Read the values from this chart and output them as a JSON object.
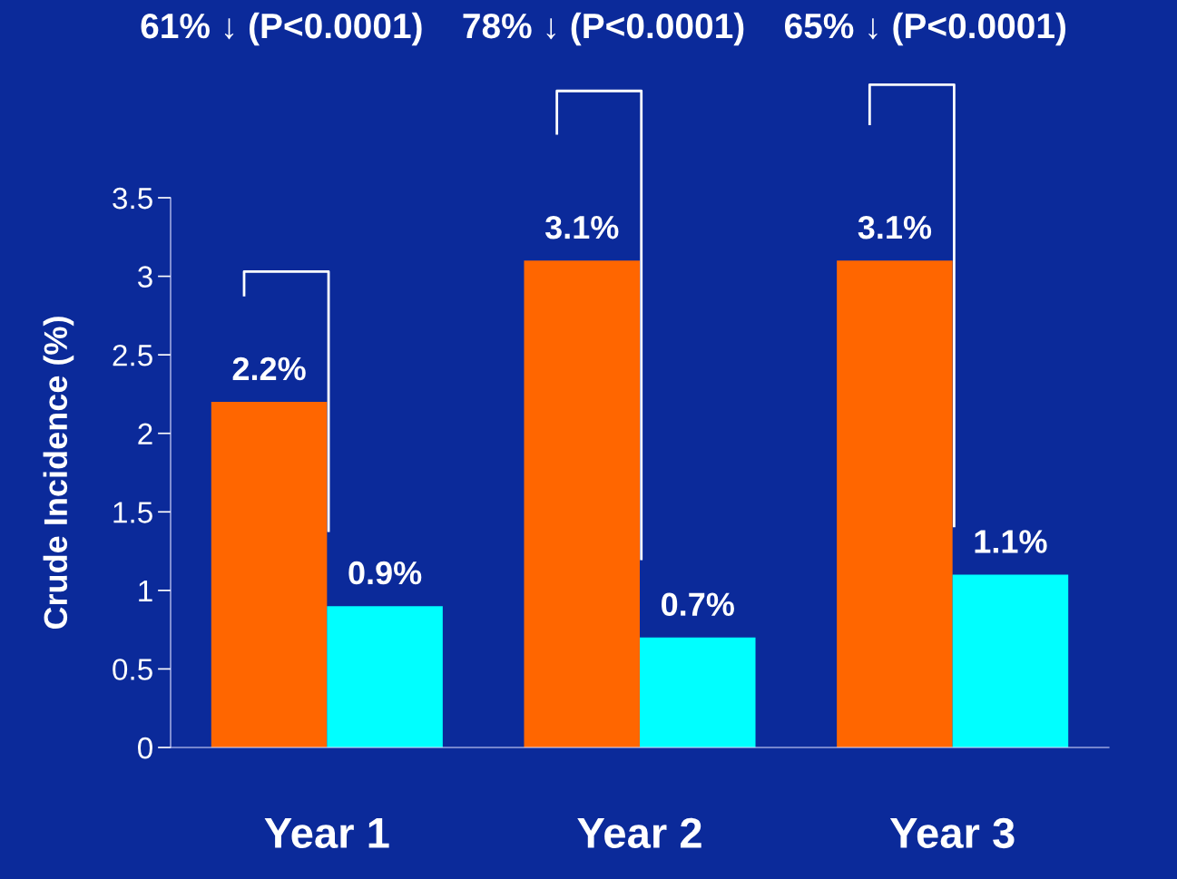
{
  "chart_data": {
    "type": "bar",
    "categories": [
      "Year 1",
      "Year 2",
      "Year 3"
    ],
    "ylabel": "Crude Incidence (%)",
    "series": [
      {
        "color": "#ff6600",
        "values": [
          2.2,
          3.1,
          3.1
        ],
        "value_labels": [
          "2.2%",
          "3.1%",
          "3.1%"
        ]
      },
      {
        "color": "#00ffff",
        "values": [
          0.9,
          0.7,
          1.1
        ],
        "value_labels": [
          "0.9%",
          "0.7%",
          "1.1%"
        ]
      }
    ],
    "ylim": [
      0,
      3.5
    ],
    "yticks": [
      0,
      0.5,
      1,
      1.5,
      2,
      2.5,
      3,
      3.5
    ],
    "grid": false,
    "legend": false,
    "annotations": [
      "61% ↓ (P<0.0001)",
      "78% ↓ (P<0.0001)",
      "65% ↓ (P<0.0001)"
    ]
  }
}
